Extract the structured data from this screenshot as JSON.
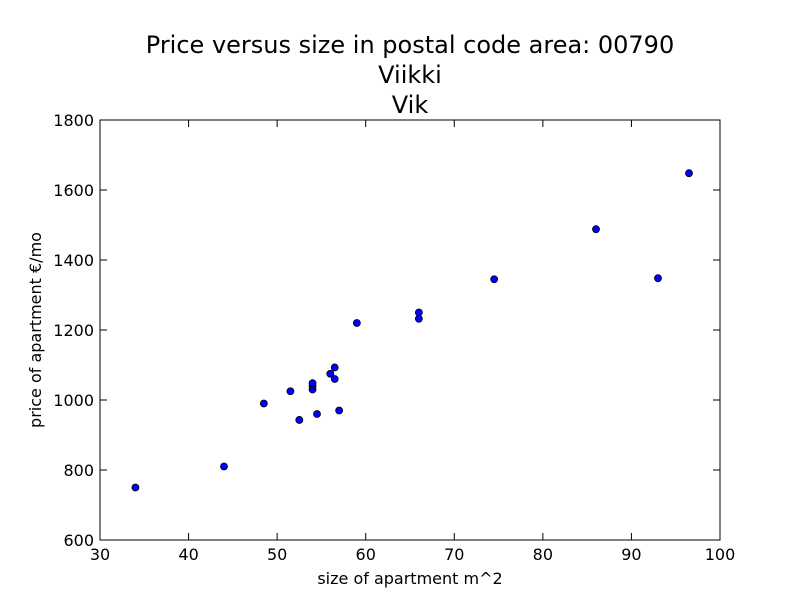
{
  "chart_data": {
    "type": "scatter",
    "title": [
      "Price versus size in postal code area: 00790",
      "Viikki",
      "Vik"
    ],
    "xlabel": "size of apartment m^2",
    "ylabel": "price of apartment €/mo",
    "xlim": [
      30,
      100
    ],
    "ylim": [
      600,
      1800
    ],
    "xticks": [
      "30",
      "40",
      "50",
      "60",
      "70",
      "80",
      "90",
      "100"
    ],
    "yticks": [
      "600",
      "800",
      "1000",
      "1200",
      "1400",
      "1600",
      "1800"
    ],
    "grid": false,
    "marker_color": "#0000ff",
    "marker_edge": "#000000",
    "points": [
      {
        "x": 34.0,
        "y": 750
      },
      {
        "x": 44.0,
        "y": 810
      },
      {
        "x": 48.5,
        "y": 990
      },
      {
        "x": 51.5,
        "y": 1025
      },
      {
        "x": 52.5,
        "y": 943
      },
      {
        "x": 54.0,
        "y": 1030
      },
      {
        "x": 54.0,
        "y": 1040
      },
      {
        "x": 54.0,
        "y": 1048
      },
      {
        "x": 54.5,
        "y": 960
      },
      {
        "x": 56.0,
        "y": 1075
      },
      {
        "x": 56.5,
        "y": 1060
      },
      {
        "x": 56.5,
        "y": 1093
      },
      {
        "x": 57.0,
        "y": 970
      },
      {
        "x": 59.0,
        "y": 1220
      },
      {
        "x": 66.0,
        "y": 1232
      },
      {
        "x": 66.0,
        "y": 1250
      },
      {
        "x": 74.5,
        "y": 1345
      },
      {
        "x": 86.0,
        "y": 1488
      },
      {
        "x": 93.0,
        "y": 1348
      },
      {
        "x": 96.5,
        "y": 1648
      }
    ]
  }
}
